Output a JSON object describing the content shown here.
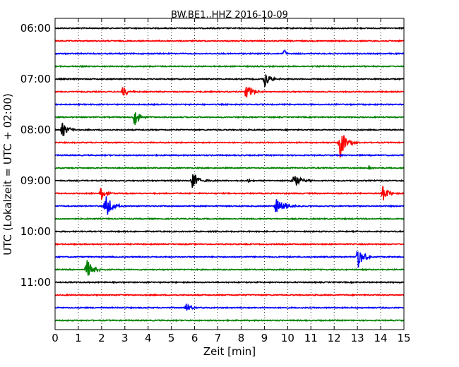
{
  "chart_data": {
    "type": "line",
    "title": "BW.BE1..HHZ 2016-10-09",
    "xlabel": "Zeit  [min]",
    "ylabel": "UTC (Lokalzeit = UTC + 02:00)",
    "xlim": [
      0,
      15
    ],
    "xticks": [
      "0",
      "1",
      "2",
      "3",
      "4",
      "5",
      "6",
      "7",
      "8",
      "9",
      "10",
      "11",
      "12",
      "13",
      "14",
      "15"
    ],
    "yticks": [
      {
        "label": "06:00",
        "trace": 0
      },
      {
        "label": "07:00",
        "trace": 4
      },
      {
        "label": "08:00",
        "trace": 8
      },
      {
        "label": "09:00",
        "trace": 12
      },
      {
        "label": "10:00",
        "trace": 16
      },
      {
        "label": "11:00",
        "trace": 20
      }
    ],
    "grid_x": true,
    "colors": [
      "#000000",
      "#ff0000",
      "#0000ff",
      "#008000"
    ],
    "trace_interval_min": 15,
    "traces": [
      {
        "start": "06:00",
        "events": []
      },
      {
        "start": "06:15",
        "events": []
      },
      {
        "start": "06:30",
        "events": [
          {
            "t": 9.85,
            "amp": 0.45,
            "dur": 0.15
          }
        ]
      },
      {
        "start": "06:45",
        "events": []
      },
      {
        "start": "07:00",
        "events": [
          {
            "t": 9.0,
            "amp": 0.6,
            "dur": 0.5
          }
        ]
      },
      {
        "start": "07:15",
        "events": [
          {
            "t": 2.9,
            "amp": 0.6,
            "dur": 0.4
          },
          {
            "t": 8.2,
            "amp": 0.7,
            "dur": 0.5
          }
        ]
      },
      {
        "start": "07:30",
        "events": []
      },
      {
        "start": "07:45",
        "events": [
          {
            "t": 3.4,
            "amp": 0.8,
            "dur": 0.4
          }
        ]
      },
      {
        "start": "08:00",
        "events": [
          {
            "t": 0.3,
            "amp": 0.7,
            "dur": 0.5
          }
        ]
      },
      {
        "start": "08:15",
        "events": [
          {
            "t": 12.25,
            "amp": 1.3,
            "dur": 0.5
          }
        ]
      },
      {
        "start": "08:30",
        "events": []
      },
      {
        "start": "08:45",
        "events": [
          {
            "t": 13.5,
            "amp": 0.3,
            "dur": 0.15
          }
        ]
      },
      {
        "start": "09:00",
        "events": [
          {
            "t": 5.9,
            "amp": 0.85,
            "dur": 0.5
          },
          {
            "t": 8.3,
            "amp": 0.2,
            "dur": 0.2
          },
          {
            "t": 10.2,
            "amp": 0.75,
            "dur": 0.6
          }
        ]
      },
      {
        "start": "09:15",
        "events": [
          {
            "t": 1.95,
            "amp": 0.55,
            "dur": 0.5
          },
          {
            "t": 14.1,
            "amp": 0.85,
            "dur": 0.4
          }
        ]
      },
      {
        "start": "09:30",
        "events": [
          {
            "t": 2.15,
            "amp": 1.2,
            "dur": 0.5
          },
          {
            "t": 9.5,
            "amp": 0.85,
            "dur": 0.7
          }
        ]
      },
      {
        "start": "09:45",
        "events": []
      },
      {
        "start": "10:00",
        "events": []
      },
      {
        "start": "10:15",
        "events": []
      },
      {
        "start": "10:30",
        "events": [
          {
            "t": 13.0,
            "amp": 1.1,
            "dur": 0.5
          }
        ]
      },
      {
        "start": "10:45",
        "events": [
          {
            "t": 1.35,
            "amp": 0.9,
            "dur": 0.5
          }
        ]
      },
      {
        "start": "11:00",
        "events": []
      },
      {
        "start": "11:15",
        "events": []
      },
      {
        "start": "11:30",
        "events": [
          {
            "t": 5.6,
            "amp": 0.5,
            "dur": 0.4
          }
        ]
      },
      {
        "start": "11:45",
        "events": []
      }
    ]
  }
}
